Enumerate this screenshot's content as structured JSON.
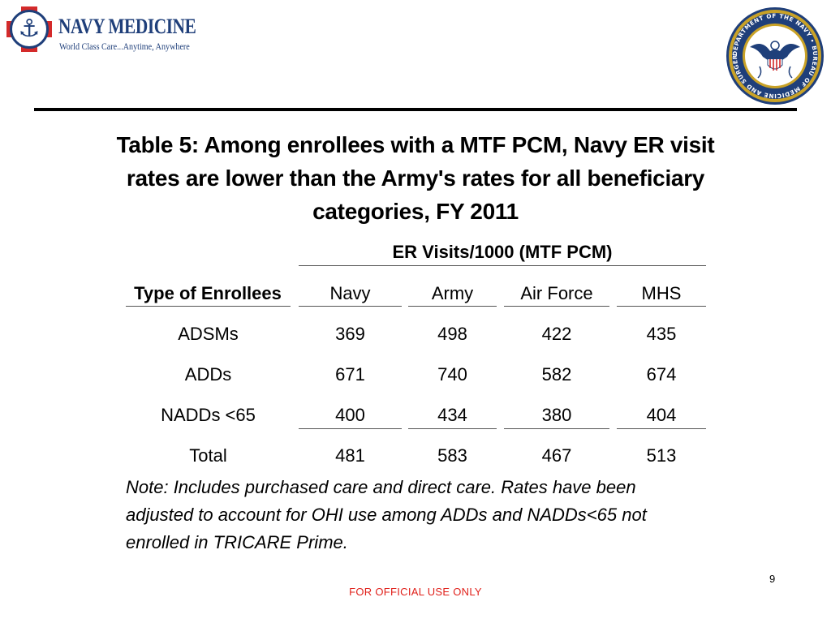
{
  "header": {
    "logo_name": "NAVY MEDICINE",
    "logo_tagline": "World Class Care...Anytime, Anywhere",
    "seal_text": "DEPARTMENT OF THE NAVY • BUREAU OF MEDICINE AND SURGERY"
  },
  "title": "Table 5: Among enrollees with a MTF PCM, Navy ER visit rates are lower than the Army's rates for all beneficiary categories, FY 2011",
  "table": {
    "group_header": "ER Visits/1000 (MTF PCM)",
    "row_header_label": "Type of Enrollees",
    "columns": [
      "Navy",
      "Army",
      "Air Force",
      "MHS"
    ],
    "rows": [
      {
        "label": "ADSMs",
        "values": [
          "369",
          "498",
          "422",
          "435"
        ]
      },
      {
        "label": "ADDs",
        "values": [
          "671",
          "740",
          "582",
          "674"
        ]
      },
      {
        "label": "NADDs <65",
        "values": [
          "400",
          "434",
          "380",
          "404"
        ]
      },
      {
        "label": "Total",
        "values": [
          "481",
          "583",
          "467",
          "513"
        ]
      }
    ]
  },
  "note": "Note: Includes purchased care and direct care. Rates have been adjusted to account for OHI use among ADDs and NADDs<65 not enrolled in TRICARE Prime.",
  "page_number": "9",
  "footer": "FOR OFFICIAL USE ONLY",
  "colors": {
    "navy_blue": "#1f3f7a",
    "cross_red": "#d42a2a",
    "seal_gold": "#c9a227",
    "footer_red": "#e0201a"
  }
}
